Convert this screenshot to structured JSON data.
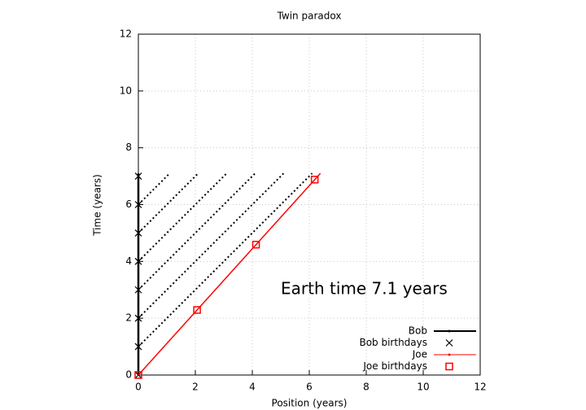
{
  "chart_data": {
    "type": "line",
    "title": "Twin paradox",
    "xlabel": "Position (years)",
    "ylabel": "Time (years)",
    "xlim": [
      0,
      12
    ],
    "ylim": [
      0,
      12
    ],
    "xticks": [
      0,
      2,
      4,
      6,
      8,
      10,
      12
    ],
    "yticks": [
      0,
      2,
      4,
      6,
      8,
      10,
      12
    ],
    "grid": true,
    "legend": "lower right",
    "annotation": "Earth time  7.1 years",
    "series": [
      {
        "name": "Bob",
        "color": "#000000",
        "style": "line",
        "x": [
          0,
          0
        ],
        "values": [
          0,
          7.1
        ]
      },
      {
        "name": "Bob birthdays",
        "color": "#000000",
        "style": "cross",
        "x": [
          0,
          0,
          0,
          0,
          0,
          0,
          0,
          0
        ],
        "values": [
          0,
          1,
          2,
          3,
          4,
          5,
          6,
          7
        ]
      },
      {
        "name": "Joe",
        "color": "#ff0000",
        "style": "line",
        "x": [
          0,
          6.39
        ],
        "values": [
          0,
          7.1
        ]
      },
      {
        "name": "Joe birthdays",
        "color": "#ff0000",
        "style": "square",
        "x": [
          0,
          2.06,
          4.13,
          6.19
        ],
        "values": [
          0,
          2.29,
          4.59,
          6.88
        ]
      }
    ],
    "light_signals": {
      "color": "#000000",
      "lines": [
        {
          "x": [
            0,
            6.1
          ],
          "values": [
            1,
            7.1
          ]
        },
        {
          "x": [
            0,
            5.1
          ],
          "values": [
            2,
            7.1
          ]
        },
        {
          "x": [
            0,
            4.1
          ],
          "values": [
            3,
            7.1
          ]
        },
        {
          "x": [
            0,
            3.1
          ],
          "values": [
            4,
            7.1
          ]
        },
        {
          "x": [
            0,
            2.1
          ],
          "values": [
            5,
            7.1
          ]
        },
        {
          "x": [
            0,
            1.1
          ],
          "values": [
            6,
            7.1
          ]
        }
      ]
    }
  }
}
